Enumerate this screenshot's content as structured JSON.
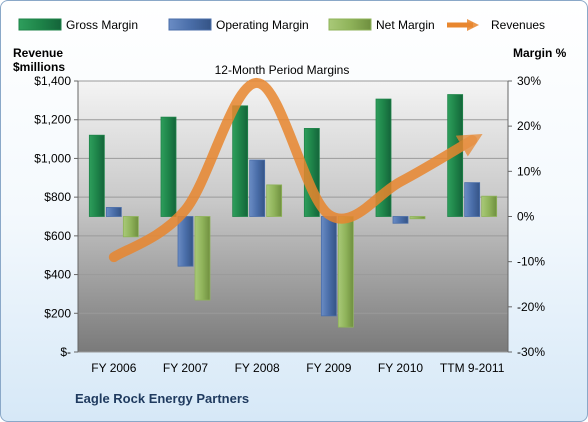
{
  "company": "Eagle Rock Energy Partners",
  "colors": {
    "gross": "#1e8449",
    "operating": "#4a6ea9",
    "net": "#8fb35a",
    "revenue": "#e8862e"
  },
  "chart_data": {
    "type": "bar",
    "title": "12-Month Period Margins",
    "ylabel_left": "Revenue\n$millions",
    "ylabel_right": "Margin %",
    "categories": [
      "FY 2006",
      "FY 2007",
      "FY 2008",
      "FY 2009",
      "FY 2010",
      "TTM 9-2011"
    ],
    "ylim_left": [
      0,
      1400
    ],
    "ylim_right": [
      -30,
      30
    ],
    "left_ticks": [
      "$-",
      "$200",
      "$400",
      "$600",
      "$800",
      "$1,000",
      "$1,200",
      "$1,400"
    ],
    "right_ticks": [
      "-30%",
      "-20%",
      "-10%",
      "0%",
      "10%",
      "20%",
      "30%"
    ],
    "legend_position": "top",
    "series": [
      {
        "name": "Gross Margin",
        "axis": "right",
        "kind": "bar",
        "values": [
          18,
          22,
          24.5,
          19.5,
          26,
          27
        ]
      },
      {
        "name": "Operating Margin",
        "axis": "right",
        "kind": "bar",
        "values": [
          2,
          -11,
          12.5,
          -22,
          -1.5,
          7.5
        ]
      },
      {
        "name": "Net Margin",
        "axis": "right",
        "kind": "bar",
        "values": [
          -4.5,
          -18.5,
          7,
          -24.5,
          -0.5,
          4.5
        ]
      },
      {
        "name": "Revenues",
        "axis": "left",
        "kind": "line",
        "values": [
          490,
          735,
          1390,
          710,
          880,
          1095
        ]
      }
    ]
  }
}
